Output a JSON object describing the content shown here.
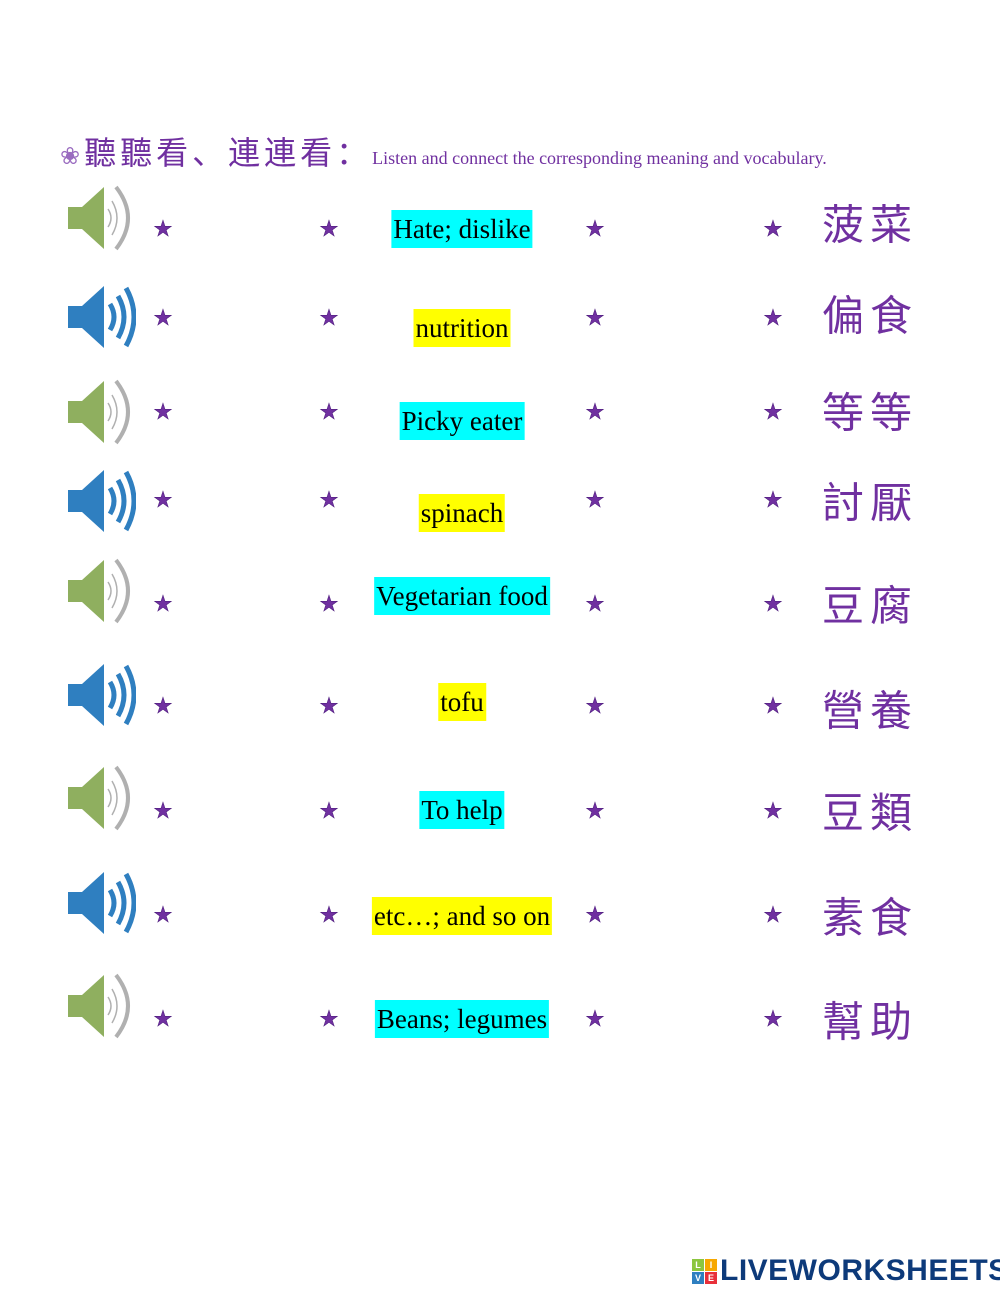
{
  "header": {
    "flower_icon": "flower-icon",
    "title_zh": "聽聽看、連連看：",
    "title_en": "Listen and connect the corresponding meaning and vocabulary."
  },
  "rows": [
    {
      "speaker": "muted-green",
      "english": "Hate; dislike",
      "highlight": "cyan",
      "chinese": "菠菜"
    },
    {
      "speaker": "playing-blue",
      "english": "nutrition",
      "highlight": "yellow",
      "chinese": "偏食"
    },
    {
      "speaker": "muted-green",
      "english": "Picky eater",
      "highlight": "cyan",
      "chinese": "等等"
    },
    {
      "speaker": "playing-blue",
      "english": "spinach",
      "highlight": "yellow",
      "chinese": "討厭"
    },
    {
      "speaker": "muted-green",
      "english": "Vegetarian food",
      "highlight": "cyan",
      "chinese": "豆腐"
    },
    {
      "speaker": "playing-blue",
      "english": "tofu",
      "highlight": "yellow",
      "chinese": "營養"
    },
    {
      "speaker": "muted-green",
      "english": "To help",
      "highlight": "cyan",
      "chinese": "豆類"
    },
    {
      "speaker": "playing-blue",
      "english": "etc…; and so on",
      "highlight": "yellow",
      "chinese": "素食"
    },
    {
      "speaker": "muted-green",
      "english": "Beans; legumes",
      "highlight": "cyan",
      "chinese": "幫助"
    }
  ],
  "colors": {
    "purple": "#7030a0",
    "cyan": "#00ffff",
    "yellow": "#ffff00",
    "speaker_green": "#8faf5f",
    "speaker_blue": "#2f7fc0"
  },
  "footer": {
    "logo": "LIVEWORKSHEETS",
    "logo_blocks": [
      "L",
      "I",
      "V",
      "E"
    ]
  }
}
